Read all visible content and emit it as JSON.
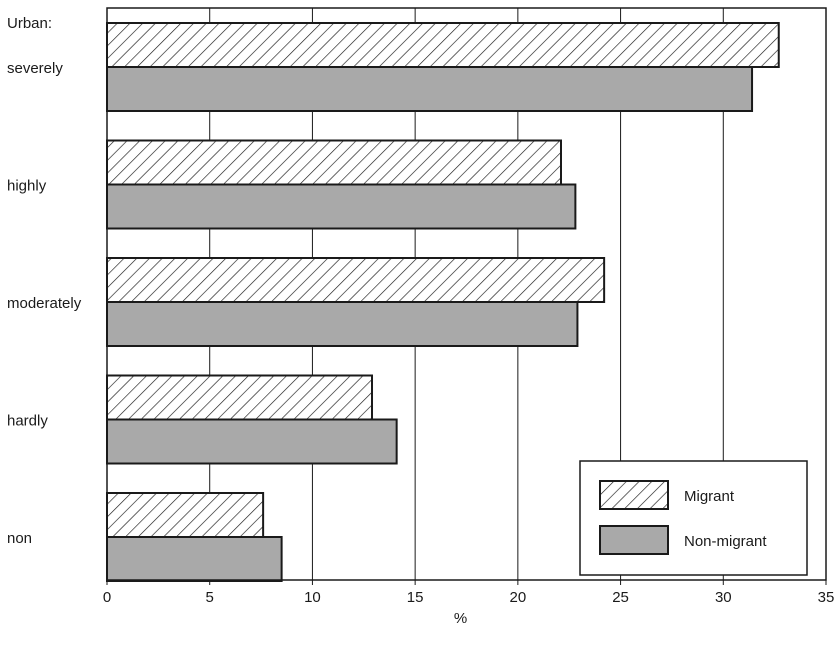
{
  "chart_data": {
    "type": "bar",
    "orientation": "horizontal",
    "category_header": "Urban:",
    "categories": [
      "severely",
      "highly",
      "moderately",
      "hardly",
      "non"
    ],
    "series": [
      {
        "name": "Migrant",
        "pattern": "hatched",
        "color": "#ffffff",
        "values": [
          32.7,
          22.1,
          24.2,
          12.9,
          7.6
        ]
      },
      {
        "name": "Non-migrant",
        "pattern": "solid",
        "color": "#a9a9a9",
        "values": [
          31.4,
          22.8,
          22.9,
          14.1,
          8.5
        ]
      }
    ],
    "xlabel": "%",
    "xlim": [
      0,
      35
    ],
    "xticks": [
      0,
      5,
      10,
      15,
      20,
      25,
      30,
      35
    ],
    "grid": "vertical",
    "legend_position": "bottom-right",
    "colors": {
      "bar_edge": "#1a1a1a",
      "hatch": "#1a1a1a",
      "grid": "#1a1a1a",
      "solid_fill": "#a9a9a9"
    }
  }
}
